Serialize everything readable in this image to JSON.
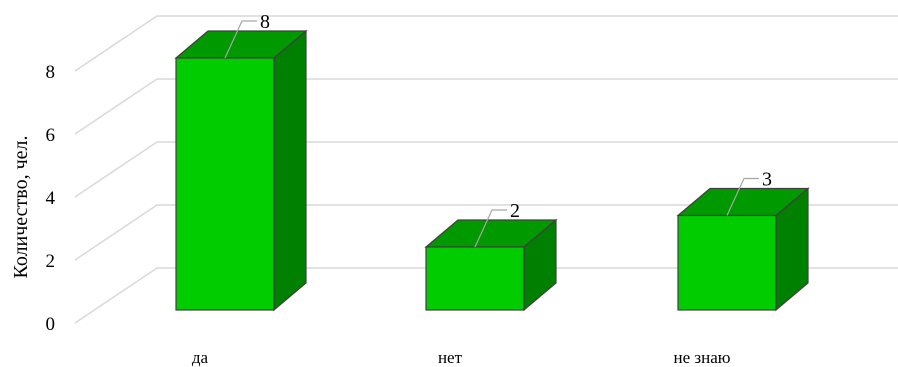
{
  "chart_data": {
    "type": "bar",
    "variant": "3d-column",
    "categories": [
      "да",
      "нет",
      "не знаю"
    ],
    "values": [
      8,
      2,
      3
    ],
    "data_labels": [
      "8",
      "2",
      "3"
    ],
    "title": "",
    "xlabel": "",
    "ylabel": "Количество, чел.",
    "ylim": [
      0,
      8
    ],
    "yticks": [
      0,
      2,
      4,
      6,
      8
    ],
    "ytick_labels": [
      "0",
      "2",
      "4",
      "6",
      "8"
    ],
    "grid": true,
    "legend": "none",
    "colors": {
      "front": "#00cc00",
      "top": "#009900",
      "side": "#008000",
      "edge": "#404040",
      "grid": "#d9d9d9",
      "leader": "#a6a6a6"
    }
  }
}
